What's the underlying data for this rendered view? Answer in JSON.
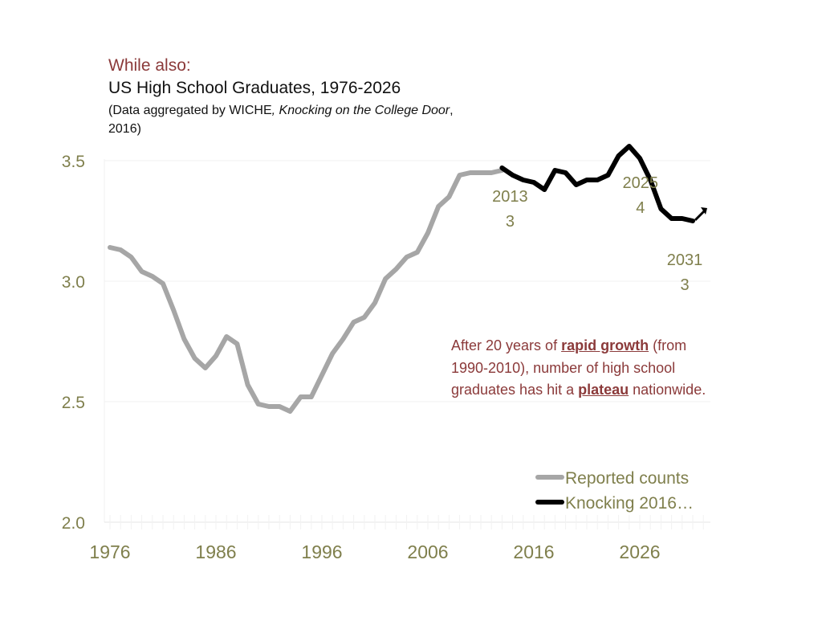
{
  "header": {
    "kicker": "While also:",
    "title": "US High School Graduates, 1976-2026",
    "subtitle_pre": "(Data aggregated by WICHE",
    "subtitle_italic": ", Knocking on the College Door",
    "subtitle_post": ", 2016)"
  },
  "annotation": {
    "text_1": "After 20 years of ",
    "emph_1": "rapid growth",
    "text_2": " (from 1990-2010), number of high school graduates has hit a ",
    "emph_2": "plateau",
    "text_3": " nationwide."
  },
  "colors": {
    "reported": "#a6a6a6",
    "knocking": "#000000",
    "axis_text": "#7f7f4c",
    "accent": "#8b3a3a"
  },
  "chart_data": {
    "type": "line",
    "title": "US High School Graduates, 1976-2026",
    "xlabel": "",
    "ylabel": "",
    "xlim": [
      1976,
      2033
    ],
    "ylim": [
      2.0,
      3.5
    ],
    "x_ticks": [
      1976,
      1986,
      1996,
      2006,
      2016,
      2026
    ],
    "x_tick_labels": [
      "1976",
      "1986",
      "1996",
      "2006",
      "2016",
      "2026"
    ],
    "y_ticks": [
      2.0,
      2.5,
      3.0,
      3.5
    ],
    "y_tick_labels": [
      "2.0",
      "2.5",
      "3.0",
      "3.5"
    ],
    "legend": {
      "position": "bottom-right"
    },
    "series": [
      {
        "name": "Reported counts",
        "color": "#a6a6a6",
        "x": [
          1976,
          1977,
          1978,
          1979,
          1980,
          1981,
          1982,
          1983,
          1984,
          1985,
          1986,
          1987,
          1988,
          1989,
          1990,
          1991,
          1992,
          1993,
          1994,
          1995,
          1996,
          1997,
          1998,
          1999,
          2000,
          2001,
          2002,
          2003,
          2004,
          2005,
          2006,
          2007,
          2008,
          2009,
          2010,
          2011,
          2012,
          2013
        ],
        "values": [
          3.14,
          3.13,
          3.1,
          3.04,
          3.02,
          2.99,
          2.88,
          2.76,
          2.68,
          2.64,
          2.69,
          2.77,
          2.74,
          2.57,
          2.49,
          2.48,
          2.48,
          2.46,
          2.52,
          2.52,
          2.61,
          2.7,
          2.76,
          2.83,
          2.85,
          2.91,
          3.01,
          3.05,
          3.1,
          3.12,
          3.2,
          3.31,
          3.35,
          3.44,
          3.45,
          3.45,
          3.45,
          3.46
        ]
      },
      {
        "name": "Knocking 2016…",
        "color": "#000000",
        "x": [
          2013,
          2014,
          2015,
          2016,
          2017,
          2018,
          2019,
          2020,
          2021,
          2022,
          2023,
          2024,
          2025,
          2026,
          2027,
          2028,
          2029,
          2030,
          2031
        ],
        "values": [
          3.47,
          3.44,
          3.42,
          3.41,
          3.38,
          3.46,
          3.45,
          3.4,
          3.42,
          3.42,
          3.44,
          3.52,
          3.56,
          3.51,
          3.42,
          3.3,
          3.26,
          3.26,
          3.25
        ]
      }
    ],
    "data_labels": [
      {
        "x": 2013,
        "value": 3.47,
        "line1": "2013",
        "line2": "3"
      },
      {
        "x": 2025,
        "value": 3.56,
        "line1": "2025",
        "line2": "4"
      },
      {
        "x": 2031,
        "value": 3.25,
        "line1": "2031",
        "line2": "3"
      }
    ]
  }
}
